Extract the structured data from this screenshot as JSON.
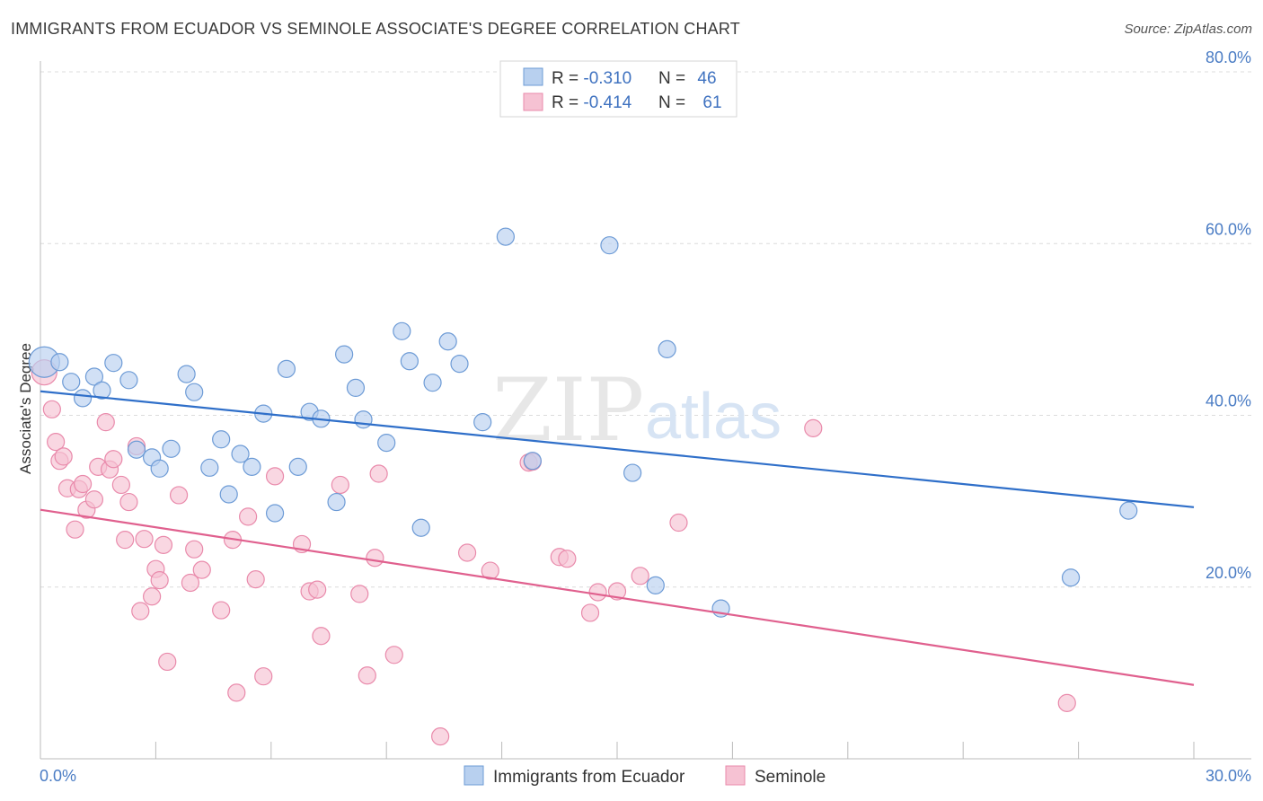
{
  "header": {
    "title": "IMMIGRANTS FROM ECUADOR VS SEMINOLE ASSOCIATE'S DEGREE CORRELATION CHART",
    "source": "Source: ZipAtlas.com"
  },
  "watermark": {
    "zip": "ZIP",
    "atlas": "atlas"
  },
  "colors": {
    "blue_fill": "#b8d0ef",
    "blue_stroke": "#6d9bd6",
    "blue_line": "#2f6fc9",
    "pink_fill": "#f6c2d3",
    "pink_stroke": "#e98aab",
    "pink_line": "#e0608e",
    "grid": "#dcdcdc",
    "tick_label": "#4a7cc4"
  },
  "legend": {
    "rows": [
      {
        "r_label": "R = ",
        "r_value": "-0.310",
        "n_label": "N = ",
        "n_value": "46"
      },
      {
        "r_label": "R = ",
        "r_value": "-0.414",
        "n_label": "N = ",
        "n_value": "61"
      }
    ]
  },
  "bottom_legend": [
    "Immigrants from Ecuador",
    "Seminole"
  ],
  "chart_data": {
    "type": "scatter",
    "title": "IMMIGRANTS FROM ECUADOR VS SEMINOLE ASSOCIATE'S DEGREE CORRELATION CHART",
    "xlabel": "",
    "ylabel": "Associate's Degree",
    "xlim": [
      0,
      30
    ],
    "ylim": [
      0,
      80
    ],
    "x_tick_labels": [
      "0.0%",
      "30.0%"
    ],
    "y_ticks": [
      20,
      40,
      60,
      80
    ],
    "y_tick_labels": [
      "20.0%",
      "40.0%",
      "60.0%",
      "80.0%"
    ],
    "grid": true,
    "legend_position": "top-center",
    "series": [
      {
        "name": "Immigrants from Ecuador",
        "r": -0.31,
        "n": 46,
        "trend": {
          "x": [
            0,
            30
          ],
          "y": [
            42.8,
            29.3
          ]
        },
        "points": [
          {
            "x": 0.1,
            "y": 46.2
          },
          {
            "x": 0.5,
            "y": 46.2
          },
          {
            "x": 0.8,
            "y": 43.9
          },
          {
            "x": 1.1,
            "y": 42.0
          },
          {
            "x": 1.4,
            "y": 44.5
          },
          {
            "x": 1.6,
            "y": 42.9
          },
          {
            "x": 1.9,
            "y": 46.1
          },
          {
            "x": 2.3,
            "y": 44.1
          },
          {
            "x": 2.5,
            "y": 36.0
          },
          {
            "x": 2.9,
            "y": 35.1
          },
          {
            "x": 3.1,
            "y": 33.8
          },
          {
            "x": 3.4,
            "y": 36.1
          },
          {
            "x": 3.8,
            "y": 44.8
          },
          {
            "x": 4.0,
            "y": 42.7
          },
          {
            "x": 4.4,
            "y": 33.9
          },
          {
            "x": 4.7,
            "y": 37.2
          },
          {
            "x": 4.9,
            "y": 30.8
          },
          {
            "x": 5.2,
            "y": 35.5
          },
          {
            "x": 5.5,
            "y": 34.0
          },
          {
            "x": 5.8,
            "y": 40.2
          },
          {
            "x": 6.1,
            "y": 28.6
          },
          {
            "x": 6.4,
            "y": 45.4
          },
          {
            "x": 6.7,
            "y": 34.0
          },
          {
            "x": 7.0,
            "y": 40.4
          },
          {
            "x": 7.3,
            "y": 39.6
          },
          {
            "x": 7.7,
            "y": 29.9
          },
          {
            "x": 7.9,
            "y": 47.1
          },
          {
            "x": 8.2,
            "y": 43.2
          },
          {
            "x": 8.4,
            "y": 39.5
          },
          {
            "x": 9.0,
            "y": 36.8
          },
          {
            "x": 9.4,
            "y": 49.8
          },
          {
            "x": 9.6,
            "y": 46.3
          },
          {
            "x": 9.9,
            "y": 26.9
          },
          {
            "x": 10.2,
            "y": 43.8
          },
          {
            "x": 10.6,
            "y": 48.6
          },
          {
            "x": 10.9,
            "y": 46.0
          },
          {
            "x": 11.5,
            "y": 39.2
          },
          {
            "x": 12.1,
            "y": 60.8
          },
          {
            "x": 12.8,
            "y": 34.7
          },
          {
            "x": 14.8,
            "y": 59.8
          },
          {
            "x": 15.4,
            "y": 33.3
          },
          {
            "x": 16.0,
            "y": 20.2
          },
          {
            "x": 16.3,
            "y": 47.7
          },
          {
            "x": 17.7,
            "y": 17.5
          },
          {
            "x": 26.8,
            "y": 21.1
          },
          {
            "x": 28.3,
            "y": 28.9
          }
        ]
      },
      {
        "name": "Seminole",
        "r": -0.414,
        "n": 61,
        "trend": {
          "x": [
            0,
            30
          ],
          "y": [
            29.0,
            8.6
          ]
        },
        "points": [
          {
            "x": 0.1,
            "y": 45.0
          },
          {
            "x": 0.3,
            "y": 40.7
          },
          {
            "x": 0.4,
            "y": 36.9
          },
          {
            "x": 0.5,
            "y": 34.7
          },
          {
            "x": 0.6,
            "y": 35.2
          },
          {
            "x": 0.7,
            "y": 31.5
          },
          {
            "x": 0.9,
            "y": 26.7
          },
          {
            "x": 1.0,
            "y": 31.4
          },
          {
            "x": 1.1,
            "y": 32.0
          },
          {
            "x": 1.2,
            "y": 29.0
          },
          {
            "x": 1.4,
            "y": 30.2
          },
          {
            "x": 1.5,
            "y": 34.0
          },
          {
            "x": 1.7,
            "y": 39.2
          },
          {
            "x": 1.8,
            "y": 33.7
          },
          {
            "x": 1.9,
            "y": 34.9
          },
          {
            "x": 2.1,
            "y": 31.9
          },
          {
            "x": 2.2,
            "y": 25.5
          },
          {
            "x": 2.3,
            "y": 29.9
          },
          {
            "x": 2.5,
            "y": 36.4
          },
          {
            "x": 2.6,
            "y": 17.2
          },
          {
            "x": 2.7,
            "y": 25.6
          },
          {
            "x": 2.9,
            "y": 18.9
          },
          {
            "x": 3.0,
            "y": 22.1
          },
          {
            "x": 3.1,
            "y": 20.8
          },
          {
            "x": 3.2,
            "y": 24.9
          },
          {
            "x": 3.3,
            "y": 11.3
          },
          {
            "x": 3.6,
            "y": 30.7
          },
          {
            "x": 3.9,
            "y": 20.5
          },
          {
            "x": 4.0,
            "y": 24.4
          },
          {
            "x": 4.2,
            "y": 22.0
          },
          {
            "x": 4.7,
            "y": 17.3
          },
          {
            "x": 5.0,
            "y": 25.5
          },
          {
            "x": 5.1,
            "y": 7.7
          },
          {
            "x": 5.4,
            "y": 28.2
          },
          {
            "x": 5.6,
            "y": 20.9
          },
          {
            "x": 5.8,
            "y": 9.6
          },
          {
            "x": 6.1,
            "y": 32.9
          },
          {
            "x": 6.8,
            "y": 25.0
          },
          {
            "x": 7.0,
            "y": 19.5
          },
          {
            "x": 7.2,
            "y": 19.7
          },
          {
            "x": 7.3,
            "y": 14.3
          },
          {
            "x": 7.8,
            "y": 31.9
          },
          {
            "x": 8.3,
            "y": 19.2
          },
          {
            "x": 8.5,
            "y": 9.7
          },
          {
            "x": 8.7,
            "y": 23.4
          },
          {
            "x": 8.8,
            "y": 33.2
          },
          {
            "x": 9.2,
            "y": 12.1
          },
          {
            "x": 10.4,
            "y": 2.6
          },
          {
            "x": 11.1,
            "y": 24.0
          },
          {
            "x": 11.7,
            "y": 21.9
          },
          {
            "x": 12.7,
            "y": 34.5
          },
          {
            "x": 13.5,
            "y": 23.5
          },
          {
            "x": 13.7,
            "y": 23.3
          },
          {
            "x": 14.5,
            "y": 19.4
          },
          {
            "x": 15.0,
            "y": 19.5
          },
          {
            "x": 14.3,
            "y": 17.0
          },
          {
            "x": 15.6,
            "y": 21.3
          },
          {
            "x": 16.6,
            "y": 27.5
          },
          {
            "x": 20.1,
            "y": 38.5
          },
          {
            "x": 26.7,
            "y": 6.5
          },
          {
            "x": 12.8,
            "y": 34.6
          }
        ]
      }
    ]
  }
}
